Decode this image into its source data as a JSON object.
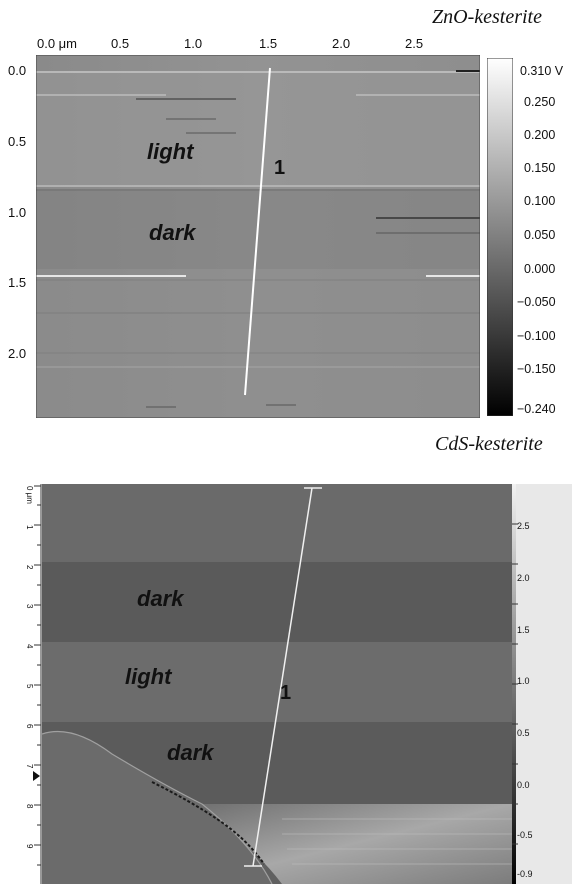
{
  "top_panel": {
    "title": "ZnO-kesterite",
    "x_ticks": [
      "0.0 μm",
      "0.5",
      "1.0",
      "1.5",
      "2.0",
      "2.5"
    ],
    "y_ticks": [
      "0.0",
      "0.5",
      "1.0",
      "1.5",
      "2.0"
    ],
    "regions": [
      "light",
      "dark"
    ],
    "profile_label": "1",
    "colorbar_ticks": [
      "0.310 V",
      "0.250",
      "0.200",
      "0.150",
      "0.100",
      "0.050",
      "0.000",
      "−0.050",
      "−0.100",
      "−0.150",
      "−0.240"
    ]
  },
  "bottom_panel": {
    "title": "CdS-kesterite",
    "y_ticks": [
      "0 μm",
      "1",
      "2",
      "3",
      "4",
      "5",
      "6",
      "7",
      "8",
      "9"
    ],
    "regions": [
      "dark",
      "light",
      "dark"
    ],
    "profile_label": "1",
    "colorbar_ticks": [
      "2.5",
      "2.0",
      "1.5",
      "1.0",
      "0.5",
      "0.0",
      "-0.5",
      "-0.9"
    ]
  }
}
